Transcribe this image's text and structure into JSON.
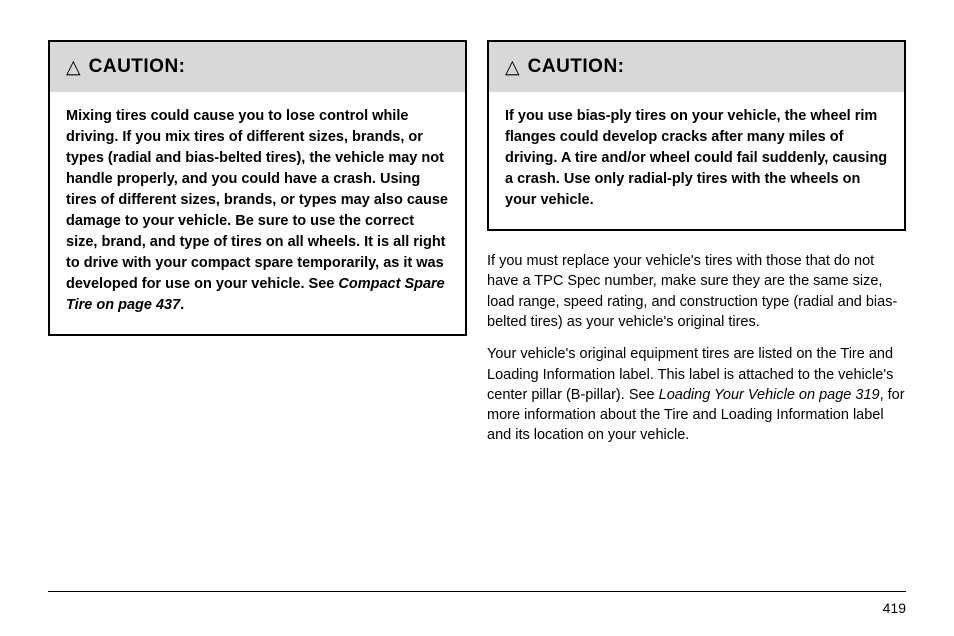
{
  "left": {
    "caution": {
      "icon": "△",
      "title": "CAUTION:",
      "body_main": "Mixing tires could cause you to lose control while driving. If you mix tires of different sizes, brands, or types (radial and bias-belted tires), the vehicle may not handle properly, and you could have a crash. Using tires of different sizes, brands, or types may also cause damage to your vehicle. Be sure to use the correct size, brand, and type of tires on all wheels. It is all right to drive with your compact spare temporarily, as it was developed for use on your vehicle. See ",
      "body_ref": "Compact Spare Tire on page 437",
      "body_end": "."
    }
  },
  "right": {
    "caution": {
      "icon": "△",
      "title": "CAUTION:",
      "body_main": "If you use bias-ply tires on your vehicle, the wheel rim flanges could develop cracks after many miles of driving. A tire and/or wheel could fail suddenly, causing a crash. Use only radial-ply tires with the wheels on your vehicle."
    },
    "para1": "If you must replace your vehicle's tires with those that do not have a TPC Spec number, make sure they are the same size, load range, speed rating, and construction type (radial and bias-belted tires) as your vehicle's original tires.",
    "para2_a": "Your vehicle's original equipment tires are listed on the Tire and Loading Information label. This label is attached to the vehicle's center pillar (B-pillar). See ",
    "para2_ref": "Loading Your Vehicle on page 319",
    "para2_b": ", for more information about the Tire and Loading Information label and its location on your vehicle."
  },
  "page_number": "419"
}
